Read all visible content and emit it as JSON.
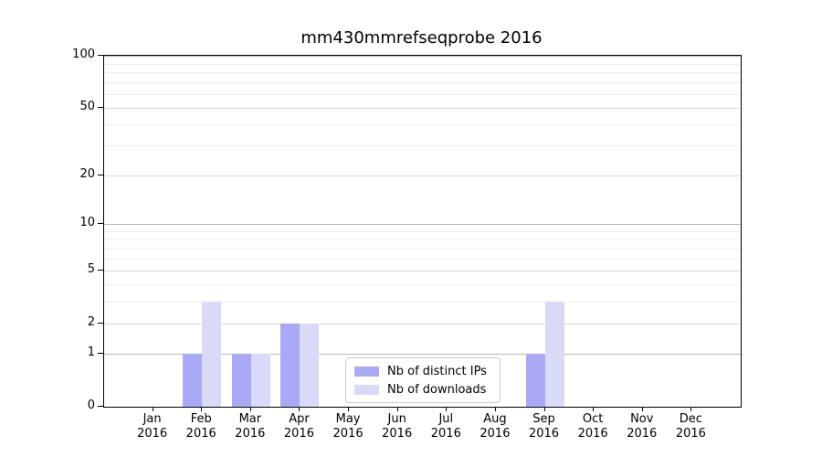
{
  "chart_data": {
    "type": "bar",
    "title": "mm430mmrefseqprobe 2016",
    "categories": [
      "Jan",
      "Feb",
      "Mar",
      "Apr",
      "May",
      "Jun",
      "Jul",
      "Aug",
      "Sep",
      "Oct",
      "Nov",
      "Dec"
    ],
    "category_year": "2016",
    "series": [
      {
        "name": "Nb of distinct IPs",
        "color": "#a9a9f6",
        "values": [
          0,
          1,
          1,
          2,
          0,
          0,
          0,
          0,
          1,
          0,
          0,
          0
        ]
      },
      {
        "name": "Nb of downloads",
        "color": "#d9d9f8",
        "values": [
          0,
          3,
          1,
          2,
          0,
          0,
          0,
          0,
          3,
          0,
          0,
          0
        ]
      }
    ],
    "y_axis": {
      "scale": "log1p",
      "lim": [
        0,
        100
      ],
      "ticks": [
        0,
        1,
        2,
        5,
        10,
        20,
        50,
        100
      ],
      "minor_ticks": [
        3,
        4,
        6,
        7,
        8,
        9,
        30,
        40,
        60,
        70,
        80,
        90
      ]
    },
    "x_axis": {
      "tick_label_lines": 2
    },
    "legend": {
      "position": "lower center",
      "border_color": "#cccccc"
    },
    "grid": "on"
  }
}
